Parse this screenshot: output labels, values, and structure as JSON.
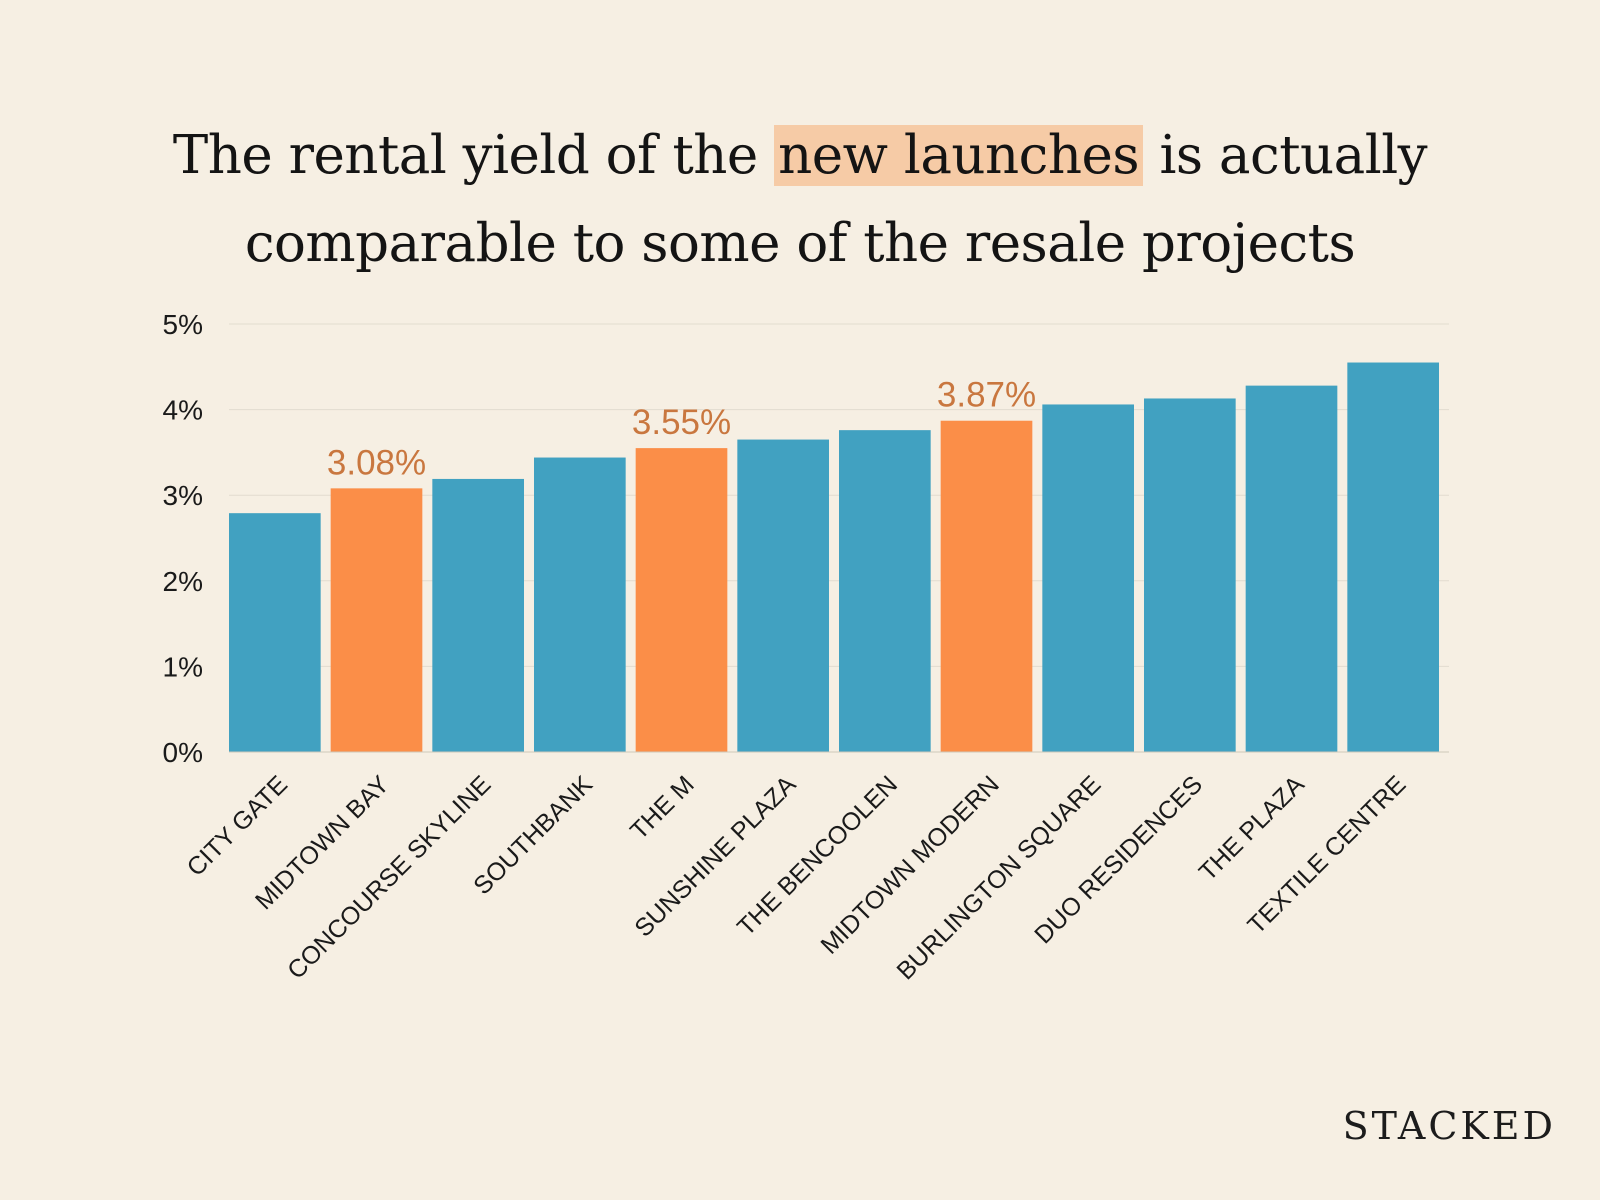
{
  "title": {
    "before": "The rental yield of the",
    "highlight": "new launches",
    "after_line1": "is actually",
    "line2": "comparable to some of the resale projects"
  },
  "brand": "STACKED",
  "colors": {
    "background": "#f6efe3",
    "resale_bar": "#41a1c1",
    "new_launch_bar": "#fb8e48",
    "new_launch_label": "#c9773f",
    "highlight": "#f6cba6",
    "gridline": "#e2dccf"
  },
  "chart_data": {
    "type": "bar",
    "categories": [
      "CITY GATE",
      "MIDTOWN BAY",
      "CONCOURSE SKYLINE",
      "SOUTHBANK",
      "THE M",
      "SUNSHINE PLAZA",
      "THE BENCOOLEN",
      "MIDTOWN MODERN",
      "BURLINGTON SQUARE",
      "DUO RESIDENCES",
      "THE PLAZA",
      "TEXTILE CENTRE"
    ],
    "values": [
      2.79,
      3.08,
      3.19,
      3.44,
      3.55,
      3.65,
      3.76,
      3.87,
      4.06,
      4.13,
      4.28,
      4.55
    ],
    "highlighted": [
      false,
      true,
      false,
      false,
      true,
      false,
      false,
      true,
      false,
      false,
      false,
      false
    ],
    "data_labels": [
      "",
      "3.08%",
      "",
      "",
      "3.55%",
      "",
      "",
      "3.87%",
      "",
      "",
      "",
      ""
    ],
    "yticks": [
      "0%",
      "1%",
      "2%",
      "3%",
      "4%",
      "5%"
    ],
    "ylim": [
      0,
      5
    ],
    "grid": true,
    "xlabel": "",
    "ylabel": ""
  }
}
